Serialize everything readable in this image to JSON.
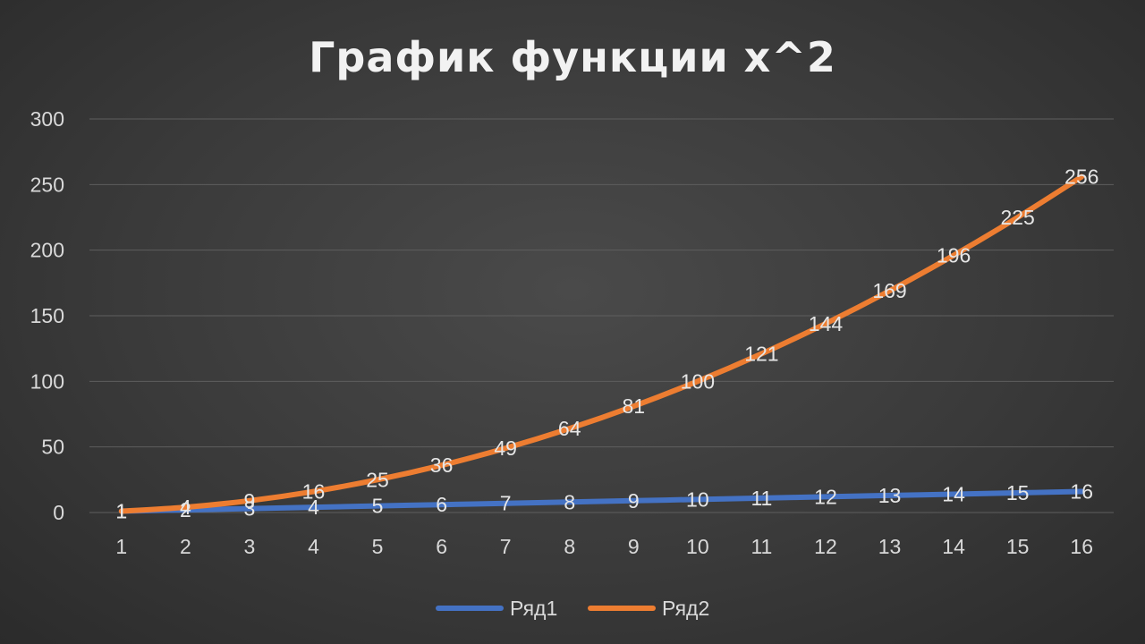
{
  "chart_data": {
    "type": "line",
    "title": "График функции x^2",
    "xlabel": "",
    "ylabel": "",
    "categories": [
      "1",
      "2",
      "3",
      "4",
      "5",
      "6",
      "7",
      "8",
      "9",
      "10",
      "11",
      "12",
      "13",
      "14",
      "15",
      "16"
    ],
    "yticks": [
      "0",
      "50",
      "100",
      "150",
      "200",
      "250",
      "300"
    ],
    "ylim": [
      0,
      300
    ],
    "grid": true,
    "legend_position": "bottom",
    "series": [
      {
        "name": "Ряд1",
        "color": "#4472c4",
        "values": [
          1,
          2,
          3,
          4,
          5,
          6,
          7,
          8,
          9,
          10,
          11,
          12,
          13,
          14,
          15,
          16
        ]
      },
      {
        "name": "Ряд2",
        "color": "#ed7d31",
        "values": [
          1,
          4,
          9,
          16,
          25,
          36,
          49,
          64,
          81,
          100,
          121,
          144,
          169,
          196,
          225,
          256
        ]
      }
    ]
  }
}
